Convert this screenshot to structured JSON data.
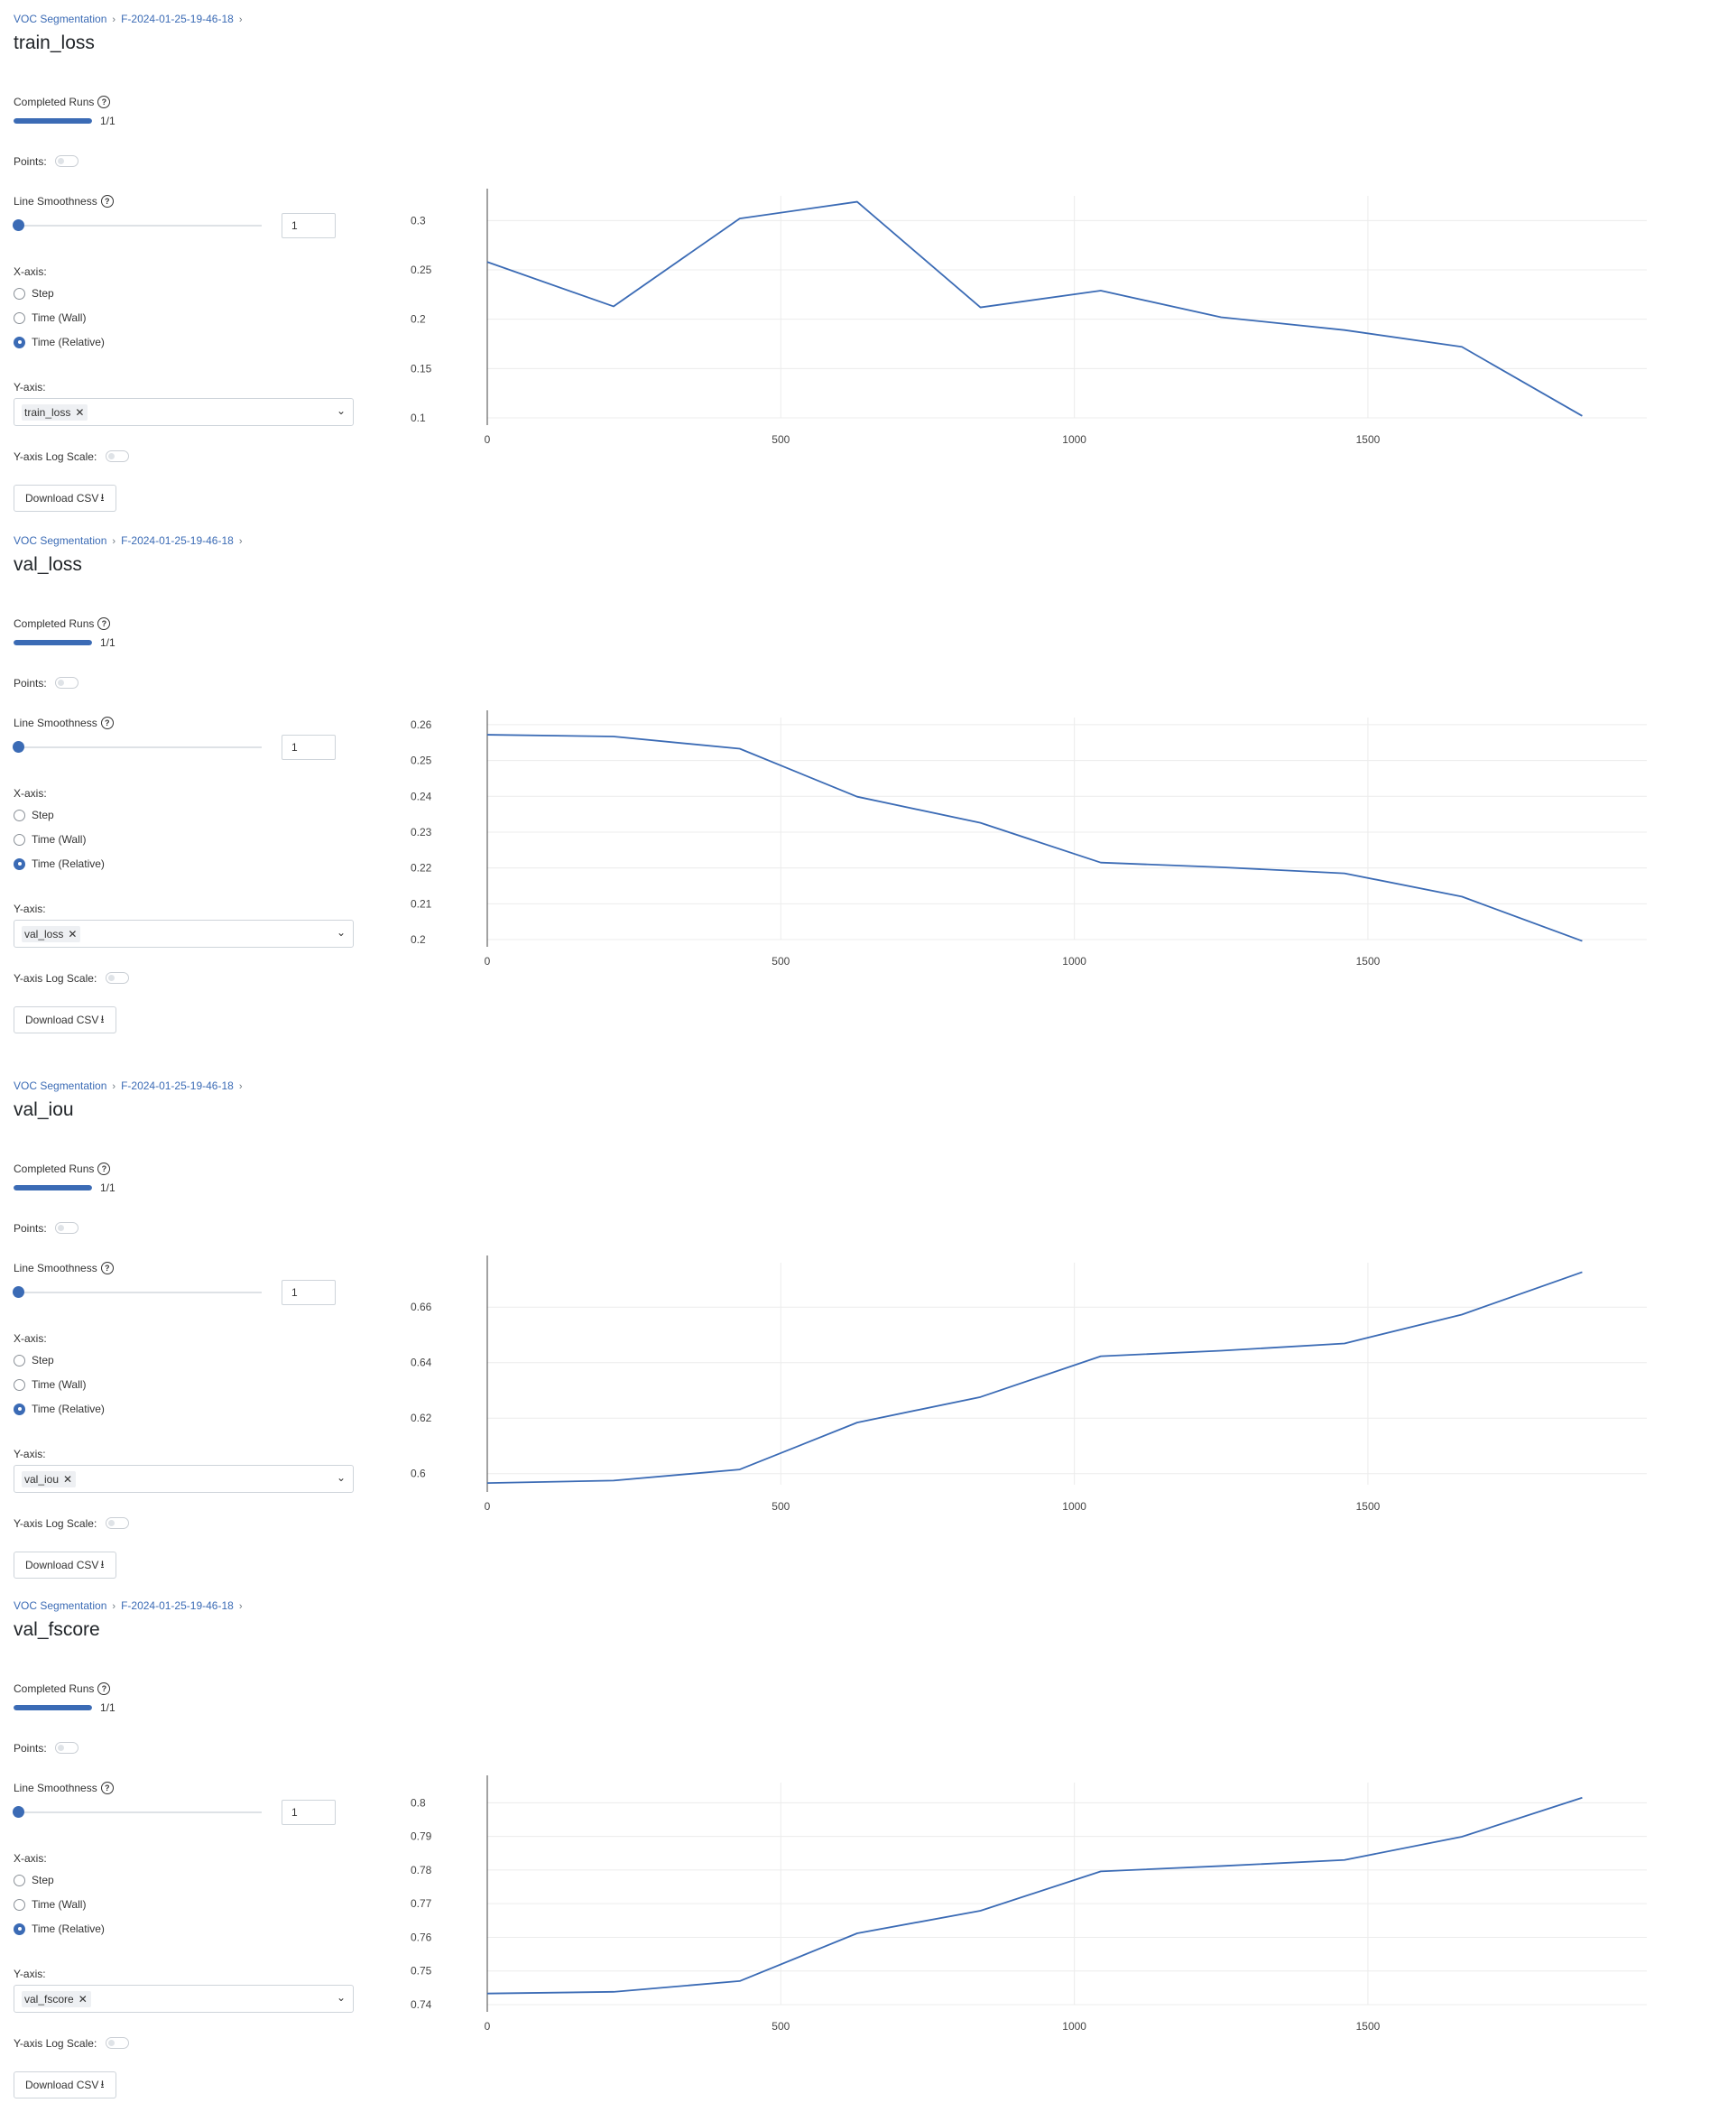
{
  "breadcrumb": {
    "project": "VOC Segmentation",
    "run": "F-2024-01-25-19-46-18",
    "separator": "›"
  },
  "labels": {
    "completed_runs": "Completed Runs",
    "points": "Points:",
    "line_smoothness": "Line Smoothness",
    "x_axis": "X-axis:",
    "y_axis": "Y-axis:",
    "y_log": "Y-axis Log Scale:",
    "download": "Download CSV",
    "help_glyph": "?",
    "remove_glyph": "✕",
    "chevron_glyph": "⌄",
    "download_glyph": "⭳"
  },
  "x_axis_options": [
    "Step",
    "Time (Wall)",
    "Time (Relative)"
  ],
  "selected_x_axis": "Time (Relative)",
  "accent_color": "#3b6bb5",
  "icons": [
    "help-circle-icon",
    "close-icon",
    "chevron-down-icon",
    "download-icon"
  ],
  "panels": [
    {
      "title": "train_loss",
      "completed_runs": "1/1",
      "progress_fraction": 1.0,
      "smoothness": "1",
      "y_metric": "train_loss",
      "chart_data": {
        "type": "line",
        "x": [
          0,
          215,
          430,
          630,
          840,
          1045,
          1250,
          1460,
          1660,
          1865
        ],
        "y": [
          0.258,
          0.213,
          0.302,
          0.319,
          0.212,
          0.229,
          0.202,
          0.189,
          0.172,
          0.102
        ],
        "xticks": [
          0,
          500,
          1000,
          1500
        ],
        "yticks": [
          0.1,
          0.15,
          0.2,
          0.25,
          0.3
        ],
        "ytick_labels": [
          "0.1",
          "0.15",
          "0.2",
          "0.25",
          "0.3"
        ],
        "xlim": [
          0,
          1975
        ],
        "ylim": [
          0.1,
          0.325
        ]
      }
    },
    {
      "title": "val_loss",
      "completed_runs": "1/1",
      "progress_fraction": 1.0,
      "smoothness": "1",
      "y_metric": "val_loss",
      "chart_data": {
        "type": "line",
        "x": [
          0,
          215,
          430,
          630,
          840,
          1045,
          1250,
          1460,
          1660,
          1865
        ],
        "y": [
          0.2572,
          0.2567,
          0.2533,
          0.2399,
          0.2326,
          0.2215,
          0.2202,
          0.2185,
          0.212,
          0.1996
        ],
        "xticks": [
          0,
          500,
          1000,
          1500
        ],
        "yticks": [
          0.2,
          0.21,
          0.22,
          0.23,
          0.24,
          0.25,
          0.26
        ],
        "ytick_labels": [
          "0.2",
          "0.21",
          "0.22",
          "0.23",
          "0.24",
          "0.25",
          "0.26"
        ],
        "xlim": [
          0,
          1975
        ],
        "ylim": [
          0.2,
          0.262
        ]
      }
    },
    {
      "title": "val_iou",
      "completed_runs": "1/1",
      "progress_fraction": 1.0,
      "smoothness": "1",
      "y_metric": "val_iou",
      "chart_data": {
        "type": "line",
        "x": [
          0,
          215,
          430,
          630,
          840,
          1045,
          1250,
          1460,
          1660,
          1865
        ],
        "y": [
          0.5966,
          0.5975,
          0.6015,
          0.6184,
          0.6276,
          0.6423,
          0.6443,
          0.6469,
          0.6573,
          0.6726
        ],
        "xticks": [
          0,
          500,
          1000,
          1500
        ],
        "yticks": [
          0.6,
          0.62,
          0.64,
          0.66
        ],
        "ytick_labels": [
          "0.6",
          "0.62",
          "0.64",
          "0.66"
        ],
        "xlim": [
          0,
          1975
        ],
        "ylim": [
          0.596,
          0.676
        ]
      }
    },
    {
      "title": "val_fscore",
      "completed_runs": "1/1",
      "progress_fraction": 1.0,
      "smoothness": "1",
      "y_metric": "val_fscore",
      "chart_data": {
        "type": "line",
        "x": [
          0,
          215,
          430,
          630,
          840,
          1045,
          1250,
          1460,
          1660,
          1865
        ],
        "y": [
          0.7433,
          0.7438,
          0.747,
          0.7612,
          0.7679,
          0.7796,
          0.7812,
          0.783,
          0.7899,
          0.8015
        ],
        "xticks": [
          0,
          500,
          1000,
          1500
        ],
        "yticks": [
          0.74,
          0.75,
          0.76,
          0.77,
          0.78,
          0.79,
          0.8
        ],
        "ytick_labels": [
          "0.74",
          "0.75",
          "0.76",
          "0.77",
          "0.78",
          "0.79",
          "0.8"
        ],
        "xlim": [
          0,
          1975
        ],
        "ylim": [
          0.74,
          0.806
        ]
      }
    }
  ]
}
